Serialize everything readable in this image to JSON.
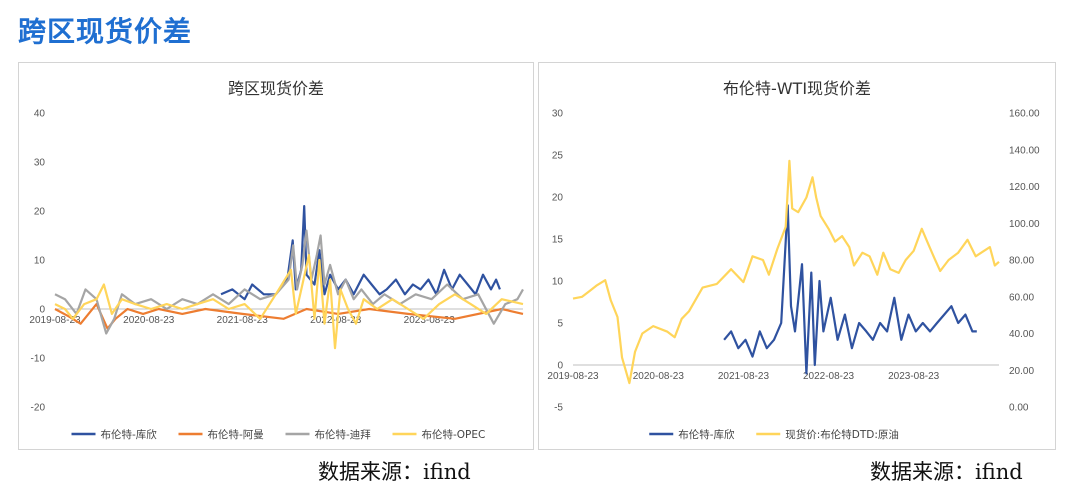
{
  "page": {
    "title": "跨区现货价差"
  },
  "source_left": "数据来源：ifind",
  "source_right": "数据来源：ifind",
  "colors": {
    "navy": "#2f52a0",
    "orange": "#ed7d31",
    "gray": "#a5a5a5",
    "yellow": "#ffd55a",
    "accent": "#1f6fd1"
  },
  "chart_data": [
    {
      "type": "line",
      "title": "跨区现货价差",
      "xlabel": "",
      "ylabel": "",
      "ylim": [
        -20,
        40
      ],
      "yticks": [
        -20,
        -10,
        0,
        10,
        20,
        30,
        40
      ],
      "xticks": [
        "2019-08-23",
        "2020-08-23",
        "2021-08-23",
        "2022-08-23",
        "2023-08-23"
      ],
      "xlim": [
        "2019-08-23",
        "2024-08-23"
      ],
      "legend_position": "bottom",
      "grid": false,
      "series": [
        {
          "name": "布伦特-库欣",
          "color": "#2f52a0",
          "points": [
            [
              "2021-06-01",
              3
            ],
            [
              "2021-07-15",
              4
            ],
            [
              "2021-09-01",
              2
            ],
            [
              "2021-10-01",
              5
            ],
            [
              "2021-11-15",
              3
            ],
            [
              "2022-01-01",
              3
            ],
            [
              "2022-02-15",
              6
            ],
            [
              "2022-03-08",
              14
            ],
            [
              "2022-03-20",
              4
            ],
            [
              "2022-04-10",
              8
            ],
            [
              "2022-04-22",
              21
            ],
            [
              "2022-05-01",
              7
            ],
            [
              "2022-06-01",
              5
            ],
            [
              "2022-06-20",
              12
            ],
            [
              "2022-07-10",
              3
            ],
            [
              "2022-08-01",
              7
            ],
            [
              "2022-09-01",
              4
            ],
            [
              "2022-10-01",
              6
            ],
            [
              "2022-11-01",
              3
            ],
            [
              "2022-12-10",
              7
            ],
            [
              "2023-01-10",
              5
            ],
            [
              "2023-02-10",
              3
            ],
            [
              "2023-03-10",
              4
            ],
            [
              "2023-04-15",
              6
            ],
            [
              "2023-05-20",
              3
            ],
            [
              "2023-06-20",
              5
            ],
            [
              "2023-07-20",
              4
            ],
            [
              "2023-08-20",
              6
            ],
            [
              "2023-09-20",
              3
            ],
            [
              "2023-10-20",
              8
            ],
            [
              "2023-11-20",
              4
            ],
            [
              "2023-12-20",
              7
            ],
            [
              "2024-01-20",
              5
            ],
            [
              "2024-02-20",
              3
            ],
            [
              "2024-03-20",
              7
            ],
            [
              "2024-04-20",
              4
            ],
            [
              "2024-05-10",
              6
            ],
            [
              "2024-05-25",
              4
            ]
          ]
        },
        {
          "name": "布伦特-阿曼",
          "color": "#ed7d31",
          "points": [
            [
              "2019-08-23",
              0
            ],
            [
              "2019-10-15",
              -1.5
            ],
            [
              "2019-12-01",
              -3
            ],
            [
              "2020-02-01",
              1
            ],
            [
              "2020-03-15",
              -4
            ],
            [
              "2020-04-15",
              -2
            ],
            [
              "2020-06-01",
              0
            ],
            [
              "2020-08-01",
              -1
            ],
            [
              "2020-10-01",
              0
            ],
            [
              "2021-01-01",
              -1
            ],
            [
              "2021-04-01",
              0
            ],
            [
              "2021-08-23",
              -1
            ],
            [
              "2022-02-01",
              -2
            ],
            [
              "2022-05-01",
              0
            ],
            [
              "2022-09-01",
              -1
            ],
            [
              "2023-01-01",
              0
            ],
            [
              "2023-06-01",
              -1
            ],
            [
              "2023-12-01",
              -2
            ],
            [
              "2024-06-01",
              0
            ],
            [
              "2024-08-23",
              -1
            ]
          ]
        },
        {
          "name": "布伦特-迪拜",
          "color": "#a5a5a5",
          "points": [
            [
              "2019-08-23",
              3
            ],
            [
              "2019-10-01",
              2
            ],
            [
              "2019-11-15",
              -1
            ],
            [
              "2019-12-20",
              4
            ],
            [
              "2020-02-01",
              2
            ],
            [
              "2020-03-10",
              -5
            ],
            [
              "2020-04-10",
              -2
            ],
            [
              "2020-05-10",
              3
            ],
            [
              "2020-07-01",
              1
            ],
            [
              "2020-09-01",
              2
            ],
            [
              "2020-11-01",
              0
            ],
            [
              "2021-01-01",
              2
            ],
            [
              "2021-03-01",
              1
            ],
            [
              "2021-05-01",
              3
            ],
            [
              "2021-07-01",
              1
            ],
            [
              "2021-09-01",
              4
            ],
            [
              "2021-11-01",
              2
            ],
            [
              "2022-01-01",
              3
            ],
            [
              "2022-02-20",
              6
            ],
            [
              "2022-03-10",
              13
            ],
            [
              "2022-03-25",
              4
            ],
            [
              "2022-04-15",
              9
            ],
            [
              "2022-05-01",
              16
            ],
            [
              "2022-05-20",
              6
            ],
            [
              "2022-06-10",
              11
            ],
            [
              "2022-06-25",
              15
            ],
            [
              "2022-07-10",
              5
            ],
            [
              "2022-08-01",
              9
            ],
            [
              "2022-09-01",
              3
            ],
            [
              "2022-10-01",
              6
            ],
            [
              "2022-11-01",
              2
            ],
            [
              "2022-12-01",
              4
            ],
            [
              "2023-01-15",
              1
            ],
            [
              "2023-03-01",
              3
            ],
            [
              "2023-05-01",
              1
            ],
            [
              "2023-07-01",
              3
            ],
            [
              "2023-09-01",
              2
            ],
            [
              "2023-11-01",
              5
            ],
            [
              "2024-01-01",
              2
            ],
            [
              "2024-03-01",
              3
            ],
            [
              "2024-05-01",
              -3
            ],
            [
              "2024-06-15",
              1
            ],
            [
              "2024-08-01",
              2
            ],
            [
              "2024-08-23",
              4
            ]
          ]
        },
        {
          "name": "布伦特-OPEC",
          "color": "#ffd55a",
          "points": [
            [
              "2019-08-23",
              1
            ],
            [
              "2019-10-01",
              0
            ],
            [
              "2019-11-01",
              -2
            ],
            [
              "2019-12-15",
              1
            ],
            [
              "2020-02-01",
              2
            ],
            [
              "2020-03-01",
              5
            ],
            [
              "2020-04-01",
              -1
            ],
            [
              "2020-05-10",
              2
            ],
            [
              "2020-07-01",
              1
            ],
            [
              "2020-09-01",
              0
            ],
            [
              "2020-11-01",
              1
            ],
            [
              "2021-01-01",
              0
            ],
            [
              "2021-03-01",
              1
            ],
            [
              "2021-05-01",
              2
            ],
            [
              "2021-07-01",
              0
            ],
            [
              "2021-09-01",
              1
            ],
            [
              "2021-11-01",
              -2
            ],
            [
              "2022-01-01",
              3
            ],
            [
              "2022-03-01",
              8
            ],
            [
              "2022-03-20",
              -1
            ],
            [
              "2022-04-15",
              5
            ],
            [
              "2022-05-10",
              11
            ],
            [
              "2022-06-01",
              -2
            ],
            [
              "2022-06-20",
              10
            ],
            [
              "2022-07-10",
              -3
            ],
            [
              "2022-08-01",
              6
            ],
            [
              "2022-08-20",
              -8
            ],
            [
              "2022-09-10",
              4
            ],
            [
              "2022-10-10",
              0
            ],
            [
              "2022-11-10",
              -3
            ],
            [
              "2022-12-10",
              2
            ],
            [
              "2023-02-01",
              0
            ],
            [
              "2023-04-01",
              2
            ],
            [
              "2023-06-01",
              0
            ],
            [
              "2023-08-01",
              -2
            ],
            [
              "2023-10-01",
              1
            ],
            [
              "2023-12-01",
              3
            ],
            [
              "2024-02-01",
              1
            ],
            [
              "2024-04-01",
              -1
            ],
            [
              "2024-06-01",
              2
            ],
            [
              "2024-08-23",
              1
            ]
          ]
        }
      ]
    },
    {
      "type": "line",
      "title": "布伦特-WTI现货价差",
      "xlabel": "",
      "ylabel": "",
      "ylim": [
        -5,
        30
      ],
      "yticks": [
        -5,
        0,
        5,
        10,
        15,
        20,
        25,
        30
      ],
      "y2lim": [
        0,
        160
      ],
      "y2ticks": [
        "0.00",
        "20.00",
        "40.00",
        "60.00",
        "80.00",
        "100.00",
        "120.00",
        "140.00",
        "160.00"
      ],
      "xticks": [
        "2019-08-23",
        "2020-08-23",
        "2021-08-23",
        "2022-08-23",
        "2023-08-23"
      ],
      "xlim": [
        "2019-08-23",
        "2024-08-23"
      ],
      "legend_position": "bottom",
      "grid": false,
      "series": [
        {
          "name": "布伦特-库欣",
          "color": "#2f52a0",
          "axis": "left",
          "points": [
            [
              "2021-06-01",
              3
            ],
            [
              "2021-07-01",
              4
            ],
            [
              "2021-08-01",
              2
            ],
            [
              "2021-09-01",
              3
            ],
            [
              "2021-10-01",
              1
            ],
            [
              "2021-11-01",
              4
            ],
            [
              "2021-12-01",
              2
            ],
            [
              "2022-01-01",
              3
            ],
            [
              "2022-02-01",
              5
            ],
            [
              "2022-03-01",
              19
            ],
            [
              "2022-03-15",
              7
            ],
            [
              "2022-04-01",
              4
            ],
            [
              "2022-05-01",
              12
            ],
            [
              "2022-05-20",
              -1
            ],
            [
              "2022-06-10",
              11
            ],
            [
              "2022-06-25",
              0
            ],
            [
              "2022-07-15",
              10
            ],
            [
              "2022-08-01",
              4
            ],
            [
              "2022-09-01",
              8
            ],
            [
              "2022-10-01",
              3
            ],
            [
              "2022-11-01",
              6
            ],
            [
              "2022-12-01",
              2
            ],
            [
              "2023-01-01",
              5
            ],
            [
              "2023-02-01",
              4
            ],
            [
              "2023-03-01",
              3
            ],
            [
              "2023-04-01",
              5
            ],
            [
              "2023-05-01",
              4
            ],
            [
              "2023-06-01",
              8
            ],
            [
              "2023-07-01",
              3
            ],
            [
              "2023-08-01",
              6
            ],
            [
              "2023-09-01",
              4
            ],
            [
              "2023-10-01",
              5
            ],
            [
              "2023-11-01",
              4
            ],
            [
              "2023-12-01",
              5
            ],
            [
              "2024-01-01",
              6
            ],
            [
              "2024-02-01",
              7
            ],
            [
              "2024-03-01",
              5
            ],
            [
              "2024-04-01",
              6
            ],
            [
              "2024-05-01",
              4
            ],
            [
              "2024-05-20",
              4
            ]
          ]
        },
        {
          "name": "现货价:布伦特DTD:原油",
          "color": "#ffd55a",
          "axis": "right",
          "points": [
            [
              "2019-08-23",
              59
            ],
            [
              "2019-10-01",
              60
            ],
            [
              "2019-11-01",
              63
            ],
            [
              "2019-12-01",
              66
            ],
            [
              "2020-01-08",
              69
            ],
            [
              "2020-02-01",
              58
            ],
            [
              "2020-03-01",
              49
            ],
            [
              "2020-03-20",
              27
            ],
            [
              "2020-04-21",
              13
            ],
            [
              "2020-05-15",
              30
            ],
            [
              "2020-06-15",
              40
            ],
            [
              "2020-08-01",
              44
            ],
            [
              "2020-10-01",
              41
            ],
            [
              "2020-11-01",
              38
            ],
            [
              "2020-12-01",
              48
            ],
            [
              "2021-01-01",
              52
            ],
            [
              "2021-03-01",
              65
            ],
            [
              "2021-05-01",
              67
            ],
            [
              "2021-07-01",
              75
            ],
            [
              "2021-08-23",
              68
            ],
            [
              "2021-10-01",
              82
            ],
            [
              "2021-11-15",
              80
            ],
            [
              "2021-12-10",
              72
            ],
            [
              "2022-01-15",
              86
            ],
            [
              "2022-02-20",
              98
            ],
            [
              "2022-03-08",
              134
            ],
            [
              "2022-03-20",
              108
            ],
            [
              "2022-04-15",
              106
            ],
            [
              "2022-05-20",
              114
            ],
            [
              "2022-06-15",
              125
            ],
            [
              "2022-07-01",
              114
            ],
            [
              "2022-07-20",
              104
            ],
            [
              "2022-08-23",
              97
            ],
            [
              "2022-09-20",
              90
            ],
            [
              "2022-10-20",
              93
            ],
            [
              "2022-11-20",
              87
            ],
            [
              "2022-12-10",
              77
            ],
            [
              "2023-01-15",
              84
            ],
            [
              "2023-02-15",
              82
            ],
            [
              "2023-03-20",
              72
            ],
            [
              "2023-04-15",
              84
            ],
            [
              "2023-05-15",
              75
            ],
            [
              "2023-06-20",
              73
            ],
            [
              "2023-07-20",
              80
            ],
            [
              "2023-08-23",
              85
            ],
            [
              "2023-09-27",
              97
            ],
            [
              "2023-10-20",
              90
            ],
            [
              "2023-11-20",
              81
            ],
            [
              "2023-12-15",
              74
            ],
            [
              "2024-01-20",
              80
            ],
            [
              "2024-03-01",
              84
            ],
            [
              "2024-04-10",
              91
            ],
            [
              "2024-05-15",
              82
            ],
            [
              "2024-06-20",
              85
            ],
            [
              "2024-07-15",
              87
            ],
            [
              "2024-08-05",
              77
            ],
            [
              "2024-08-23",
              79
            ]
          ]
        }
      ]
    }
  ]
}
